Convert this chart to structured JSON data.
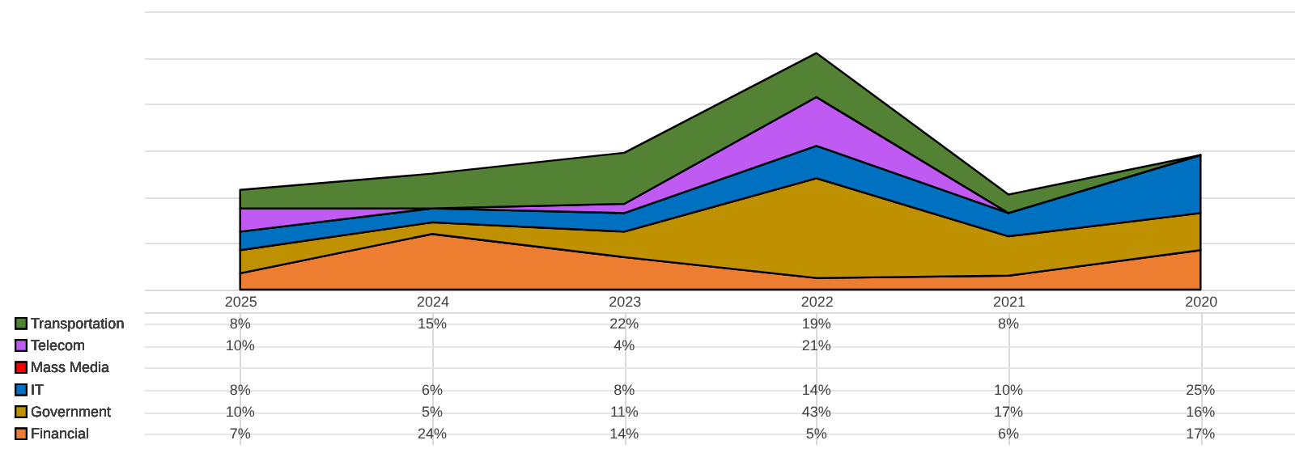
{
  "chart_data": {
    "type": "area",
    "stacked": true,
    "categories": [
      "2025",
      "2024",
      "2023",
      "2022",
      "2021",
      "2020"
    ],
    "series": [
      {
        "name": "Financial",
        "color": "#ed7d31",
        "values": [
          7,
          24,
          14,
          5,
          6,
          17
        ],
        "value_labels": [
          "7%",
          "24%",
          "14%",
          "5%",
          "6%",
          "17%"
        ]
      },
      {
        "name": "Government",
        "color": "#bf9000",
        "values": [
          10,
          5,
          11,
          43,
          17,
          16
        ],
        "value_labels": [
          "10%",
          "5%",
          "11%",
          "43%",
          "17%",
          "16%"
        ]
      },
      {
        "name": "IT",
        "color": "#0070c0",
        "values": [
          8,
          6,
          8,
          14,
          10,
          25
        ],
        "value_labels": [
          "8%",
          "6%",
          "8%",
          "14%",
          "10%",
          "25%"
        ]
      },
      {
        "name": "Mass Media",
        "color": "#ff0000",
        "values": [
          null,
          null,
          null,
          null,
          null,
          null
        ],
        "value_labels": [
          null,
          null,
          null,
          null,
          null,
          null
        ]
      },
      {
        "name": "Telecom",
        "color": "#bf5af2",
        "values": [
          10,
          0,
          4,
          21,
          0,
          0
        ],
        "value_labels": [
          "10%",
          null,
          "4%",
          "21%",
          null,
          null
        ]
      },
      {
        "name": "Transportation",
        "color": "#548235",
        "values": [
          8,
          15,
          22,
          19,
          8,
          0
        ],
        "value_labels": [
          "8%",
          "15%",
          "22%",
          "19%",
          "8%",
          null
        ]
      }
    ],
    "ylim": [
      0,
      120
    ],
    "yticks": [
      {
        "value": 0,
        "label": null
      },
      {
        "value": 20,
        "label": null
      },
      {
        "value": 40,
        "label": null
      },
      {
        "value": 60,
        "label": null
      },
      {
        "value": 80,
        "label": null
      },
      {
        "value": 100,
        "label": null
      },
      {
        "value": 120,
        "label": null
      }
    ],
    "grid": "y",
    "tick_labels": "x",
    "legend": "left"
  }
}
